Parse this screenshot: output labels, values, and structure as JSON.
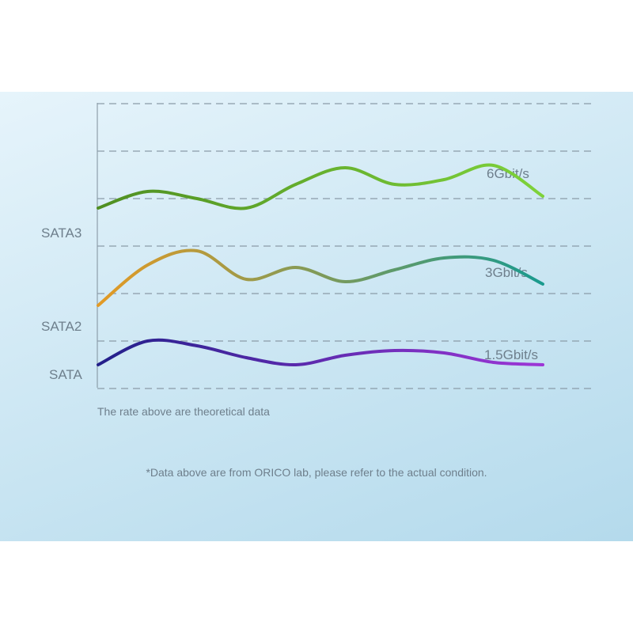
{
  "chart_data": {
    "type": "line",
    "speed_labels": [
      "6Gbit/s",
      "3Gbit/s",
      "1.5Gbit/s"
    ],
    "series": [
      {
        "name": "SATA3",
        "color_start": "#4f8f22",
        "color_end": "#7ed23a",
        "values": [
          7.6,
          8.3,
          8.0,
          7.6,
          8.6,
          9.3,
          8.6,
          8.8,
          9.4,
          8.1
        ]
      },
      {
        "name": "SATA2",
        "color_start": "#e39a25",
        "color_end": "#1a9a8e",
        "values": [
          3.5,
          5.2,
          5.8,
          4.6,
          5.1,
          4.5,
          5.0,
          5.5,
          5.4,
          4.4
        ]
      },
      {
        "name": "SATA",
        "color_start": "#23208a",
        "color_end": "#9d36d6",
        "values": [
          1.0,
          2.0,
          1.8,
          1.3,
          1.0,
          1.4,
          1.6,
          1.5,
          1.1,
          1.0
        ]
      }
    ],
    "grid": "dashed horizontal",
    "note": "The rate above are theoretical data"
  },
  "footnote": "*Data above are from ORICO lab, please refer to the actual condition.",
  "colors": {
    "grid": "#8a9ba8",
    "text": "#6e7f8c",
    "axis": "#7f8f9b"
  }
}
